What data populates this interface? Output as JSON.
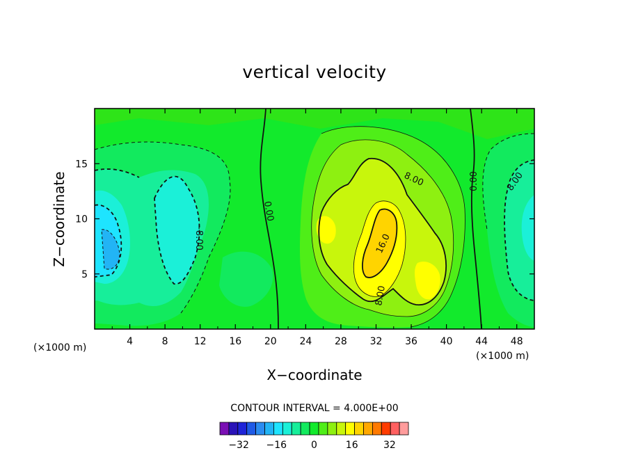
{
  "chart_data": {
    "type": "contour",
    "title": "vertical velocity",
    "xlabel": "X−coordinate",
    "ylabel": "Z−coordinate",
    "xunit_left": "(×1000 m)",
    "xunit_right": "(×1000 m)",
    "xlim": [
      0,
      50
    ],
    "ylim": [
      0,
      20
    ],
    "x_ticks": [
      "4",
      "8",
      "12",
      "16",
      "20",
      "24",
      "28",
      "32",
      "36",
      "40",
      "44",
      "48"
    ],
    "y_ticks": [
      "5",
      "10",
      "15"
    ],
    "contour_interval_text": "CONTOUR INTERVAL = 4.000E+00",
    "contour_labels": [
      "8.00",
      "16.0",
      "8.00",
      "0.00",
      "0.00",
      "8.00",
      "−8.00"
    ],
    "colorbar": {
      "levels": [
        -40,
        -36,
        -32,
        -28,
        -24,
        -20,
        -16,
        -12,
        -8,
        -4,
        0,
        4,
        8,
        12,
        16,
        20,
        24,
        28,
        32,
        36,
        40
      ],
      "tick_labels": [
        "−32",
        "−16",
        "0",
        "16",
        "32"
      ],
      "colors": [
        "#7a0fb4",
        "#2a13b8",
        "#1f24d8",
        "#1f5ae6",
        "#2b8cf0",
        "#22b4f5",
        "#1ee4ff",
        "#1bf0d8",
        "#17ee9a",
        "#12ea5e",
        "#12ea2c",
        "#4fee18",
        "#8ef011",
        "#c8f60c",
        "#ffff00",
        "#ffd400",
        "#ffa800",
        "#ff7a00",
        "#ff3c00",
        "#ff6060",
        "#ff9c9c"
      ]
    },
    "features": [
      {
        "kind": "updraft",
        "x": 32,
        "z": 8,
        "peak": 22,
        "note": "main updraft core"
      },
      {
        "kind": "updraft",
        "x": 38,
        "z": 5.5,
        "peak": 16
      },
      {
        "kind": "downdraft",
        "x": 1.5,
        "z": 7,
        "peak": -22
      },
      {
        "kind": "downdraft",
        "x": 10,
        "z": 10,
        "peak": -13
      },
      {
        "kind": "downdraft",
        "x": 49,
        "z": 9,
        "peak": -13
      }
    ]
  }
}
